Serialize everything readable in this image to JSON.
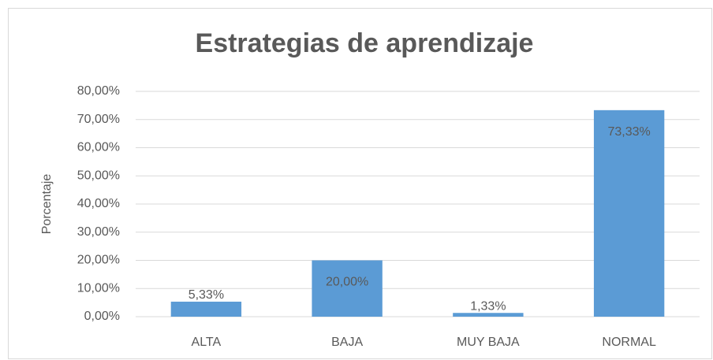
{
  "chart_data": {
    "type": "bar",
    "title": "Estrategias de aprendizaje",
    "y_label": "Porcentaje",
    "categories": [
      "ALTA",
      "BAJA",
      "MUY BAJA",
      "NORMAL"
    ],
    "values": [
      5.33,
      20,
      1.33,
      73.33
    ],
    "value_labels": [
      "5,33%",
      "20,00%",
      "1,33%",
      "73,33%"
    ],
    "color": "#5b9bd5",
    "ylim": [
      0,
      80
    ],
    "yticks": [
      {
        "value": 0,
        "label": "0,00%"
      },
      {
        "value": 10,
        "label": "10,00%"
      },
      {
        "value": 20,
        "label": "20,00%"
      },
      {
        "value": 30,
        "label": "30,00%"
      },
      {
        "value": 40,
        "label": "40,00%"
      },
      {
        "value": 50,
        "label": "50,00%"
      },
      {
        "value": 60,
        "label": "60,00%"
      },
      {
        "value": 70,
        "label": "70,00%"
      },
      {
        "value": 80,
        "label": "80,00%"
      }
    ],
    "grid": true
  }
}
